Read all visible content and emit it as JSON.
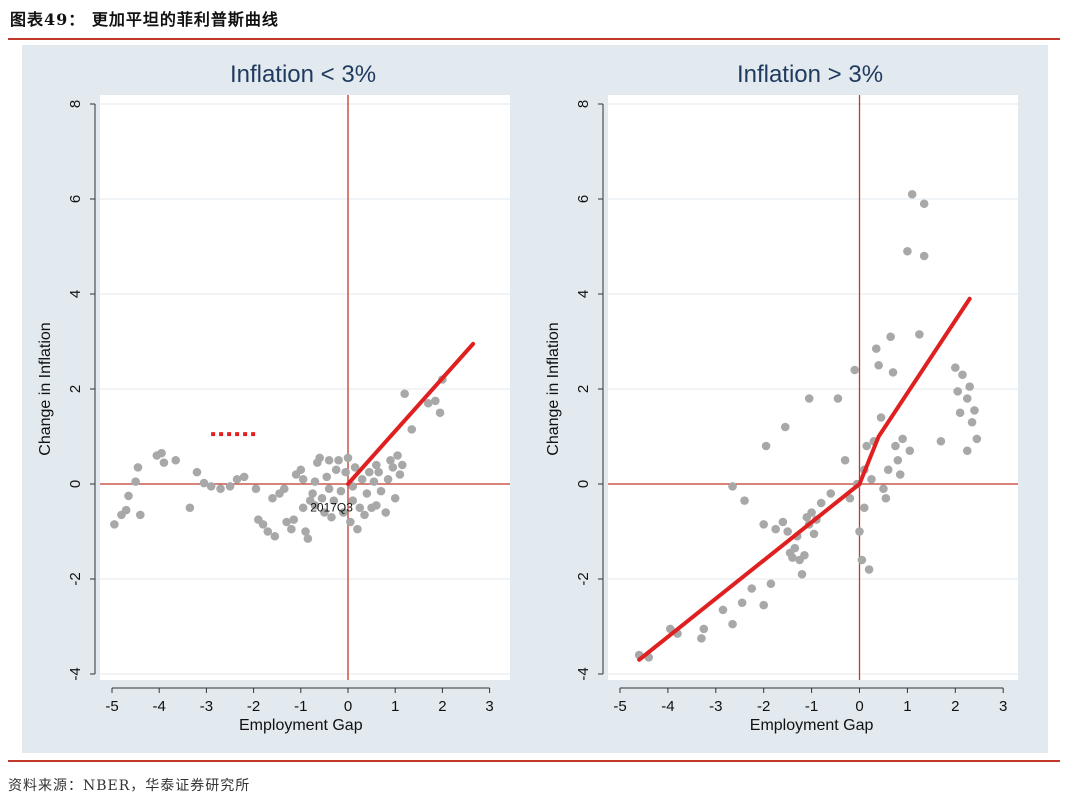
{
  "figure": {
    "title": "图表49： 更加平坦的菲利普斯曲线",
    "source": "资料来源：NBER，华泰证券研究所"
  },
  "colors": {
    "frame": "#c0392b",
    "fit": "#e02020",
    "points": "#a8a8a8",
    "bg": "#e2e9ef",
    "title": "#1f3a5f",
    "refline": "#c0392b",
    "grid": "#e2e9ef"
  },
  "chart_data": [
    {
      "type": "scatter",
      "title": "Inflation < 3%",
      "xlabel": "Employment Gap",
      "ylabel": "Change in Inflation",
      "xlim": [
        -5.3,
        3.3
      ],
      "ylim": [
        -4.2,
        8.2
      ],
      "xticks": [
        "-5",
        "-4",
        "-3",
        "-2",
        "-1",
        "0",
        "1",
        "2",
        "3"
      ],
      "yticks": [
        "-4",
        "-2",
        "0",
        "2",
        "4",
        "6",
        "8"
      ],
      "annotation": {
        "text": "2017Q3",
        "x": -0.8,
        "y": -0.3
      },
      "dotted_marker": {
        "x": [
          -2.9,
          -1.9
        ],
        "y": 1.05
      },
      "fit_line": [
        [
          0,
          0
        ],
        [
          2.65,
          2.95
        ]
      ],
      "points": [
        [
          -4.95,
          -0.85
        ],
        [
          -4.8,
          -0.65
        ],
        [
          -4.7,
          -0.55
        ],
        [
          -4.65,
          -0.25
        ],
        [
          -4.4,
          -0.65
        ],
        [
          -4.5,
          0.05
        ],
        [
          -4.45,
          0.35
        ],
        [
          -4.05,
          0.6
        ],
        [
          -3.95,
          0.65
        ],
        [
          -3.9,
          0.45
        ],
        [
          -3.65,
          0.5
        ],
        [
          -3.35,
          -0.5
        ],
        [
          -3.2,
          0.25
        ],
        [
          -3.05,
          0.02
        ],
        [
          -2.9,
          -0.05
        ],
        [
          -2.7,
          -0.1
        ],
        [
          -2.5,
          -0.05
        ],
        [
          -2.35,
          0.1
        ],
        [
          -2.2,
          0.15
        ],
        [
          -1.95,
          -0.1
        ],
        [
          -1.9,
          -0.75
        ],
        [
          -1.8,
          -0.85
        ],
        [
          -1.7,
          -1.0
        ],
        [
          -1.55,
          -1.1
        ],
        [
          -1.6,
          -0.3
        ],
        [
          -1.45,
          -0.2
        ],
        [
          -1.35,
          -0.1
        ],
        [
          -1.3,
          -0.8
        ],
        [
          -1.2,
          -0.95
        ],
        [
          -1.15,
          -0.75
        ],
        [
          -1.1,
          0.2
        ],
        [
          -1.0,
          0.3
        ],
        [
          -0.95,
          -0.5
        ],
        [
          -0.9,
          -1.0
        ],
        [
          -0.85,
          -1.15
        ],
        [
          -0.8,
          -0.35
        ],
        [
          -0.75,
          -0.2
        ],
        [
          -0.7,
          0.05
        ],
        [
          -0.65,
          0.45
        ],
        [
          -0.6,
          0.55
        ],
        [
          -0.55,
          -0.3
        ],
        [
          -0.5,
          -0.6
        ],
        [
          -0.45,
          0.15
        ],
        [
          -0.4,
          0.5
        ],
        [
          -0.35,
          -0.7
        ],
        [
          -0.3,
          -0.35
        ],
        [
          -0.25,
          0.3
        ],
        [
          -0.2,
          0.5
        ],
        [
          -0.15,
          -0.15
        ],
        [
          -0.1,
          -0.6
        ],
        [
          -0.05,
          0.25
        ],
        [
          0.0,
          0.55
        ],
        [
          0.05,
          -0.8
        ],
        [
          0.1,
          -0.35
        ],
        [
          0.15,
          0.35
        ],
        [
          0.2,
          -0.95
        ],
        [
          0.25,
          -0.5
        ],
        [
          0.3,
          0.1
        ],
        [
          0.35,
          -0.65
        ],
        [
          0.4,
          -0.2
        ],
        [
          0.45,
          0.25
        ],
        [
          0.5,
          -0.5
        ],
        [
          0.55,
          0.05
        ],
        [
          0.6,
          -0.45
        ],
        [
          0.65,
          0.25
        ],
        [
          0.7,
          -0.15
        ],
        [
          0.8,
          -0.6
        ],
        [
          0.85,
          0.1
        ],
        [
          0.9,
          0.5
        ],
        [
          0.95,
          0.35
        ],
        [
          1.0,
          -0.3
        ],
        [
          1.05,
          0.6
        ],
        [
          1.1,
          0.2
        ],
        [
          1.15,
          0.4
        ],
        [
          1.2,
          1.9
        ],
        [
          1.35,
          1.15
        ],
        [
          1.7,
          1.7
        ],
        [
          1.85,
          1.75
        ],
        [
          1.95,
          1.5
        ],
        [
          2.0,
          2.2
        ],
        [
          -0.95,
          0.1
        ],
        [
          -0.7,
          -0.45
        ],
        [
          -0.4,
          -0.1
        ],
        [
          0.1,
          -0.05
        ],
        [
          0.6,
          0.4
        ]
      ]
    },
    {
      "type": "scatter",
      "title": "Inflation > 3%",
      "xlabel": "Employment Gap",
      "ylabel": "Change in Inflation",
      "xlim": [
        -5.3,
        3.3
      ],
      "ylim": [
        -4.2,
        8.2
      ],
      "xticks": [
        "-5",
        "-4",
        "-3",
        "-2",
        "-1",
        "0",
        "1",
        "2",
        "3"
      ],
      "yticks": [
        "-4",
        "-2",
        "0",
        "2",
        "4",
        "6",
        "8"
      ],
      "fit_line": [
        [
          -4.6,
          -3.7
        ],
        [
          0,
          0
        ],
        [
          0.4,
          1.0
        ],
        [
          2.3,
          3.9
        ]
      ],
      "points": [
        [
          -4.6,
          -3.6
        ],
        [
          -4.4,
          -3.65
        ],
        [
          -3.95,
          -3.05
        ],
        [
          -3.8,
          -3.15
        ],
        [
          -3.3,
          -3.25
        ],
        [
          -3.25,
          -3.05
        ],
        [
          -2.85,
          -2.65
        ],
        [
          -2.65,
          -2.95
        ],
        [
          -2.45,
          -2.5
        ],
        [
          -2.25,
          -2.2
        ],
        [
          -2.0,
          -2.55
        ],
        [
          -1.85,
          -2.1
        ],
        [
          -2.65,
          -0.05
        ],
        [
          -2.4,
          -0.35
        ],
        [
          -2.0,
          -0.85
        ],
        [
          -1.75,
          -0.95
        ],
        [
          -1.6,
          -0.8
        ],
        [
          -1.5,
          -1.0
        ],
        [
          -1.45,
          -1.45
        ],
        [
          -1.4,
          -1.55
        ],
        [
          -1.35,
          -1.35
        ],
        [
          -1.3,
          -1.1
        ],
        [
          -1.25,
          -1.6
        ],
        [
          -1.2,
          -1.9
        ],
        [
          -1.15,
          -1.5
        ],
        [
          -1.1,
          -0.7
        ],
        [
          -1.05,
          -0.85
        ],
        [
          -1.0,
          -0.6
        ],
        [
          -0.95,
          -1.05
        ],
        [
          -0.9,
          -0.75
        ],
        [
          -1.95,
          0.8
        ],
        [
          -1.55,
          1.2
        ],
        [
          -1.05,
          1.8
        ],
        [
          -0.45,
          1.8
        ],
        [
          -0.3,
          0.5
        ],
        [
          -0.2,
          -0.3
        ],
        [
          -0.1,
          2.4
        ],
        [
          -0.05,
          0.0
        ],
        [
          0.0,
          -1.0
        ],
        [
          0.05,
          -1.6
        ],
        [
          0.1,
          -0.5
        ],
        [
          0.15,
          0.8
        ],
        [
          0.2,
          -1.8
        ],
        [
          0.25,
          0.1
        ],
        [
          0.3,
          0.9
        ],
        [
          0.35,
          2.85
        ],
        [
          0.4,
          2.5
        ],
        [
          0.45,
          1.4
        ],
        [
          0.5,
          -0.1
        ],
        [
          0.55,
          -0.3
        ],
        [
          0.6,
          0.3
        ],
        [
          0.65,
          3.1
        ],
        [
          0.7,
          2.35
        ],
        [
          0.75,
          0.8
        ],
        [
          0.8,
          0.5
        ],
        [
          0.85,
          0.2
        ],
        [
          0.9,
          0.95
        ],
        [
          1.0,
          4.9
        ],
        [
          1.05,
          0.7
        ],
        [
          1.1,
          6.1
        ],
        [
          1.25,
          3.15
        ],
        [
          1.35,
          5.9
        ],
        [
          1.35,
          4.8
        ],
        [
          1.7,
          0.9
        ],
        [
          2.0,
          2.45
        ],
        [
          2.05,
          1.95
        ],
        [
          2.1,
          1.5
        ],
        [
          2.15,
          2.3
        ],
        [
          2.25,
          1.8
        ],
        [
          2.25,
          0.7
        ],
        [
          2.3,
          2.05
        ],
        [
          2.35,
          1.3
        ],
        [
          2.4,
          1.55
        ],
        [
          2.45,
          0.95
        ],
        [
          -0.8,
          -0.4
        ],
        [
          -0.6,
          -0.2
        ],
        [
          0.1,
          0.3
        ]
      ]
    }
  ]
}
